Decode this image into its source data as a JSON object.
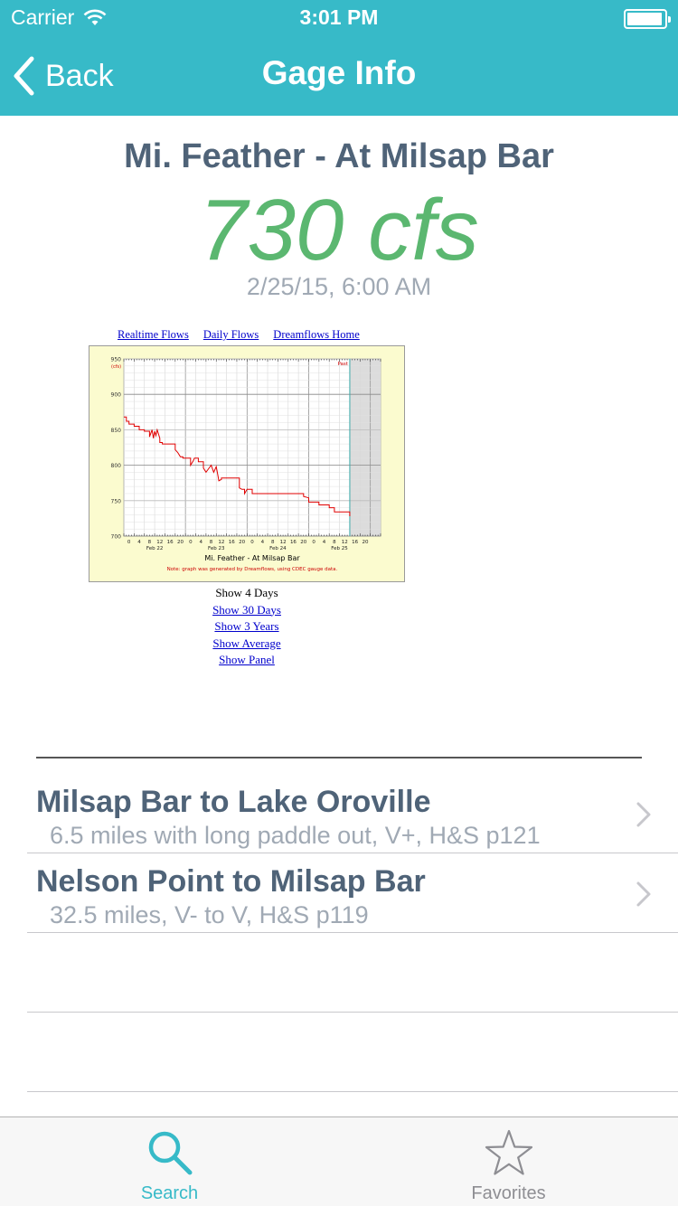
{
  "status_bar": {
    "carrier": "Carrier",
    "time": "3:01 PM",
    "battery_level": 0.95
  },
  "nav": {
    "back_label": "Back",
    "title": "Gage Info"
  },
  "gage": {
    "name": "Mi. Feather - At Milsap Bar",
    "flow": "730 cfs",
    "timestamp": "2/25/15, 6:00 AM"
  },
  "web": {
    "links": [
      "Realtime Flows",
      "Daily Flows",
      "Dreamflows Home"
    ],
    "show_current": "Show 4 Days",
    "show_links": [
      "Show 30 Days",
      "Show 3 Years",
      "Show Average",
      "Show Panel"
    ]
  },
  "chart_data": {
    "type": "line",
    "title": "Mi. Feather - At Milsap Bar",
    "ylabel": "(cfs)",
    "note": "Note: graph was generated by Dreamflows, using CDEC gauge data.",
    "past_label": "Past",
    "ylim": [
      700,
      950
    ],
    "yticks": [
      700,
      750,
      800,
      850,
      900,
      950
    ],
    "xlim": [
      0,
      100
    ],
    "hour_ticks": [
      "0",
      "4",
      "8",
      "12",
      "16",
      "20",
      "0",
      "4",
      "8",
      "12",
      "16",
      "20",
      "0",
      "4",
      "8",
      "12",
      "16",
      "20",
      "0",
      "4",
      "8",
      "12",
      "16",
      "20"
    ],
    "day_labels": [
      {
        "label": "Feb 22",
        "hour": 12
      },
      {
        "label": "Feb 23",
        "hour": 36
      },
      {
        "label": "Feb 24",
        "hour": 60
      },
      {
        "label": "Feb 25",
        "hour": 84
      }
    ],
    "now_hour": 88,
    "series": [
      {
        "values": [
          [
            0,
            868
          ],
          [
            1,
            868
          ],
          [
            1,
            862
          ],
          [
            2,
            862
          ],
          [
            2,
            858
          ],
          [
            4,
            858
          ],
          [
            4,
            855
          ],
          [
            6,
            855
          ],
          [
            6,
            850
          ],
          [
            8,
            850
          ],
          [
            8,
            848
          ],
          [
            10,
            848
          ],
          [
            10,
            840
          ],
          [
            11,
            850
          ],
          [
            11.5,
            838
          ],
          [
            12,
            848
          ],
          [
            12.5,
            842
          ],
          [
            13,
            850
          ],
          [
            14,
            838
          ],
          [
            14,
            832
          ],
          [
            15,
            832
          ],
          [
            15,
            830
          ],
          [
            20,
            830
          ],
          [
            20,
            822
          ],
          [
            21,
            818
          ],
          [
            22,
            812
          ],
          [
            23,
            812
          ],
          [
            23,
            810
          ],
          [
            26,
            810
          ],
          [
            26,
            800
          ],
          [
            27,
            806
          ],
          [
            27.5,
            810
          ],
          [
            29,
            810
          ],
          [
            29,
            805
          ],
          [
            31,
            805
          ],
          [
            31,
            796
          ],
          [
            32,
            790
          ],
          [
            33,
            795
          ],
          [
            34,
            800
          ],
          [
            35,
            790
          ],
          [
            36,
            798
          ],
          [
            36.5,
            788
          ],
          [
            37,
            778
          ],
          [
            38,
            780
          ],
          [
            38,
            782
          ],
          [
            45,
            782
          ],
          [
            45,
            768
          ],
          [
            46,
            766
          ],
          [
            47,
            766
          ],
          [
            47,
            760
          ],
          [
            48,
            766
          ],
          [
            50,
            766
          ],
          [
            50,
            760
          ],
          [
            70,
            760
          ],
          [
            70,
            756
          ],
          [
            72,
            754
          ],
          [
            72,
            748
          ],
          [
            76,
            748
          ],
          [
            76,
            744
          ],
          [
            80,
            744
          ],
          [
            80,
            740
          ],
          [
            82,
            740
          ],
          [
            82,
            734
          ],
          [
            88,
            734
          ],
          [
            88,
            728
          ]
        ]
      }
    ]
  },
  "runs": [
    {
      "title": "Milsap Bar to Lake Oroville",
      "subtitle": "6.5 miles with long paddle out, V+, H&S p121"
    },
    {
      "title": "Nelson Point to Milsap Bar",
      "subtitle": "32.5 miles, V- to V, H&S p119"
    }
  ],
  "tabs": [
    {
      "label": "Search",
      "icon": "search-icon",
      "active": true
    },
    {
      "label": "Favorites",
      "icon": "star-icon",
      "active": false
    }
  ],
  "colors": {
    "accent": "#37bac8",
    "flow_green": "#5bb770",
    "title_slate": "#4f6378",
    "muted_gray": "#a0a9b4",
    "chart_bg": "#fbfbcf",
    "chart_line": "#e00000",
    "inactive_tab": "#8e8e93"
  }
}
